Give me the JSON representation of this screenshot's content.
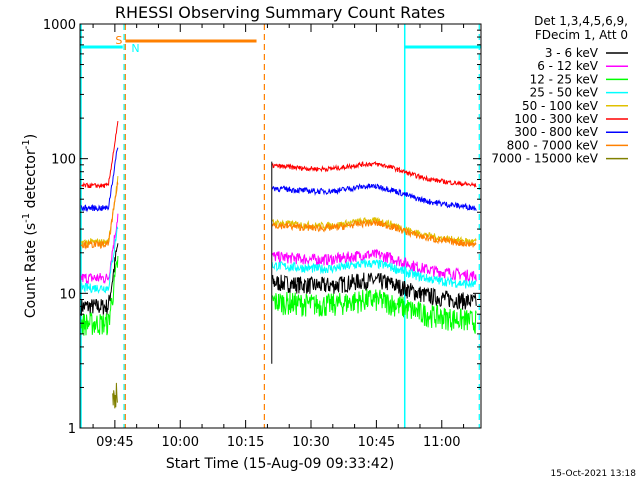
{
  "chart_data": {
    "type": "line",
    "title": "RHESSI Observing Summary Count Rates",
    "xlabel": "Start Time (15-Aug-09 09:33:42)",
    "ylabel_main": "Count Rate (s",
    "ylabel_sup1": "-1",
    "ylabel_mid": " detector",
    "ylabel_sup2": "-1",
    "ylabel_end": ")",
    "footer": "15-Oct-2021 13:18",
    "y_scale": "log",
    "ylim": [
      1,
      1000
    ],
    "y_ticks": [
      {
        "value": 1,
        "label": "1"
      },
      {
        "value": 10,
        "label": "10"
      },
      {
        "value": 100,
        "label": "100"
      },
      {
        "value": 1000,
        "label": "1000"
      }
    ],
    "xlim_min": [
      -8,
      84
    ],
    "x_ticks": [
      {
        "value": 0,
        "label": "09:45"
      },
      {
        "value": 15,
        "label": "10:00"
      },
      {
        "value": 30,
        "label": "10:15"
      },
      {
        "value": 45,
        "label": "10:30"
      },
      {
        "value": 60,
        "label": "10:45"
      },
      {
        "value": 75,
        "label": "11:00"
      }
    ],
    "legend": {
      "header1": "Det 1,3,4,5,6,9,",
      "header2": "FDecim 1, Att 0",
      "placement": "top-right"
    },
    "series": [
      {
        "name": "3 - 6 keV",
        "color": "#000000",
        "pre": 8,
        "post": 9,
        "noise": 0.15
      },
      {
        "name": "6 - 12 keV",
        "color": "#ff00ff",
        "pre": 13,
        "post": 14,
        "noise": 0.1
      },
      {
        "name": "12 - 25 keV",
        "color": "#00ff00",
        "pre": 6,
        "post": 6.5,
        "noise": 0.2
      },
      {
        "name": "25 - 50 keV",
        "color": "#00ffff",
        "pre": 11,
        "post": 12,
        "noise": 0.08
      },
      {
        "name": "50 - 100 keV",
        "color": "#e0c000",
        "pre": 24,
        "post": 25,
        "noise": 0.06
      },
      {
        "name": "100 - 300 keV",
        "color": "#ff0000",
        "pre": 63,
        "post": 66,
        "noise": 0.04
      },
      {
        "name": "300 - 800 keV",
        "color": "#0000ff",
        "pre": 43,
        "post": 45,
        "noise": 0.05
      },
      {
        "name": "800 - 7000 keV",
        "color": "#ff8000",
        "pre": 23,
        "post": 24,
        "noise": 0.06
      },
      {
        "name": "7000 - 15000 keV",
        "color": "#808000",
        "pre": 1.2,
        "post": 1.2,
        "noise": 0.1
      }
    ],
    "gaps": {
      "data_end_min": 0.8,
      "data_start_min": 35.5,
      "data_stop_min": 84
    },
    "markers": {
      "saa_label": "S",
      "night_label": "N",
      "saa_color": "#ff8000",
      "night_color": "#00ffff",
      "saa_bar_min": [
        2.4,
        32.5
      ],
      "night_bar_a_min": [
        -8,
        1.8
      ],
      "night_bar_b_min": [
        66.5,
        84
      ],
      "orange_dashed_min": [
        2.4,
        34.3
      ],
      "cyan_dashed_min": [
        2.1,
        83.6
      ],
      "cyan_solid_min": [
        -8,
        66.5
      ]
    }
  }
}
